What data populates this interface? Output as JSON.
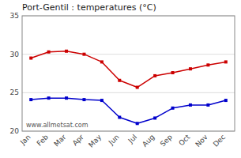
{
  "chart_data": {
    "type": "line",
    "title": "Port-Gentil : temperatures (°C)",
    "categories": [
      "Jan",
      "Feb",
      "Mar",
      "Apr",
      "May",
      "Jun",
      "Jul",
      "Aug",
      "Sep",
      "Oct",
      "Nov",
      "Dec"
    ],
    "series": [
      {
        "color": "#cc0000",
        "marker": "square",
        "values": [
          29.5,
          30.3,
          30.4,
          30.0,
          29.0,
          26.6,
          25.7,
          27.2,
          27.6,
          28.1,
          28.6,
          29.0
        ]
      },
      {
        "color": "#0000cc",
        "marker": "square",
        "values": [
          24.1,
          24.3,
          24.3,
          24.1,
          24.0,
          21.8,
          21.0,
          21.7,
          23.0,
          23.4,
          23.4,
          24.0
        ]
      }
    ],
    "ylim": [
      20,
      35
    ],
    "yticks": [
      20,
      25,
      30,
      35
    ],
    "grid": true,
    "annotation": "www.allmetsat.com"
  }
}
